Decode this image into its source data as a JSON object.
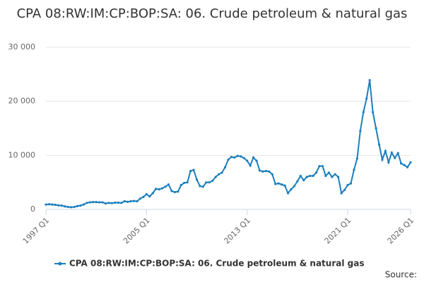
{
  "chart_data": {
    "type": "line",
    "title": "CPA 08:RW:IM:CP:BOP:SA: 06. Crude petroleum & natural gas",
    "source": "Source:",
    "categories": [
      "1997 Q1",
      null,
      null,
      null,
      null,
      null,
      null,
      null,
      null,
      null,
      null,
      null,
      null,
      null,
      null,
      null,
      null,
      null,
      null,
      null,
      null,
      null,
      null,
      null,
      null,
      null,
      null,
      null,
      null,
      null,
      null,
      null,
      "2005 Q1",
      null,
      null,
      null,
      null,
      null,
      null,
      null,
      null,
      null,
      null,
      null,
      null,
      null,
      null,
      null,
      null,
      null,
      null,
      null,
      null,
      null,
      null,
      null,
      null,
      null,
      null,
      null,
      null,
      null,
      null,
      null,
      "2013 Q1",
      null,
      null,
      null,
      null,
      null,
      null,
      null,
      null,
      null,
      null,
      null,
      null,
      null,
      null,
      null,
      null,
      null,
      null,
      null,
      null,
      null,
      null,
      null,
      null,
      null,
      null,
      null,
      null,
      null,
      null,
      null,
      "2021 Q1",
      null,
      null,
      null,
      null,
      null,
      null,
      null,
      null,
      null,
      null,
      null,
      null,
      null,
      null,
      null,
      null,
      null,
      null,
      null,
      "2026 Q1"
    ],
    "series": [
      {
        "name": "CPA 08:RW:IM:CP:BOP:SA: 06. Crude petroleum & natural gas",
        "color": "#1b7fbd",
        "values": [
          900,
          950,
          900,
          850,
          750,
          700,
          550,
          450,
          400,
          450,
          600,
          700,
          900,
          1200,
          1300,
          1350,
          1350,
          1300,
          1300,
          1100,
          1200,
          1150,
          1250,
          1250,
          1200,
          1500,
          1400,
          1500,
          1550,
          1500,
          2000,
          2300,
          2800,
          2400,
          3000,
          3800,
          3700,
          3900,
          4200,
          4600,
          3400,
          3200,
          3300,
          4500,
          4900,
          5000,
          7100,
          7300,
          5500,
          4300,
          4200,
          5000,
          5000,
          5300,
          6000,
          6500,
          6800,
          7800,
          9200,
          9700,
          9600,
          9900,
          9800,
          9500,
          9000,
          8100,
          9600,
          9000,
          7200,
          7000,
          7100,
          7000,
          6500,
          4700,
          4800,
          4600,
          4400,
          3000,
          3700,
          4300,
          5200,
          6200,
          5400,
          6000,
          6200,
          6200,
          6800,
          8000,
          8000,
          6200,
          6800,
          6000,
          6500,
          6000,
          3000,
          3600,
          4500,
          4800,
          7300,
          9400,
          14500,
          18000,
          20500,
          23900,
          18000,
          15000,
          12000,
          9200,
          10800,
          8700,
          10500,
          9500,
          10400,
          8500,
          8200,
          7800,
          8700
        ]
      }
    ],
    "ylim": [
      0,
      30000
    ],
    "yticks": [
      0,
      {
        "value": 10000,
        "label": "10 000"
      },
      {
        "value": 20000,
        "label": "20 000"
      },
      {
        "value": 30000,
        "label": "30 000"
      }
    ],
    "grid": true
  }
}
